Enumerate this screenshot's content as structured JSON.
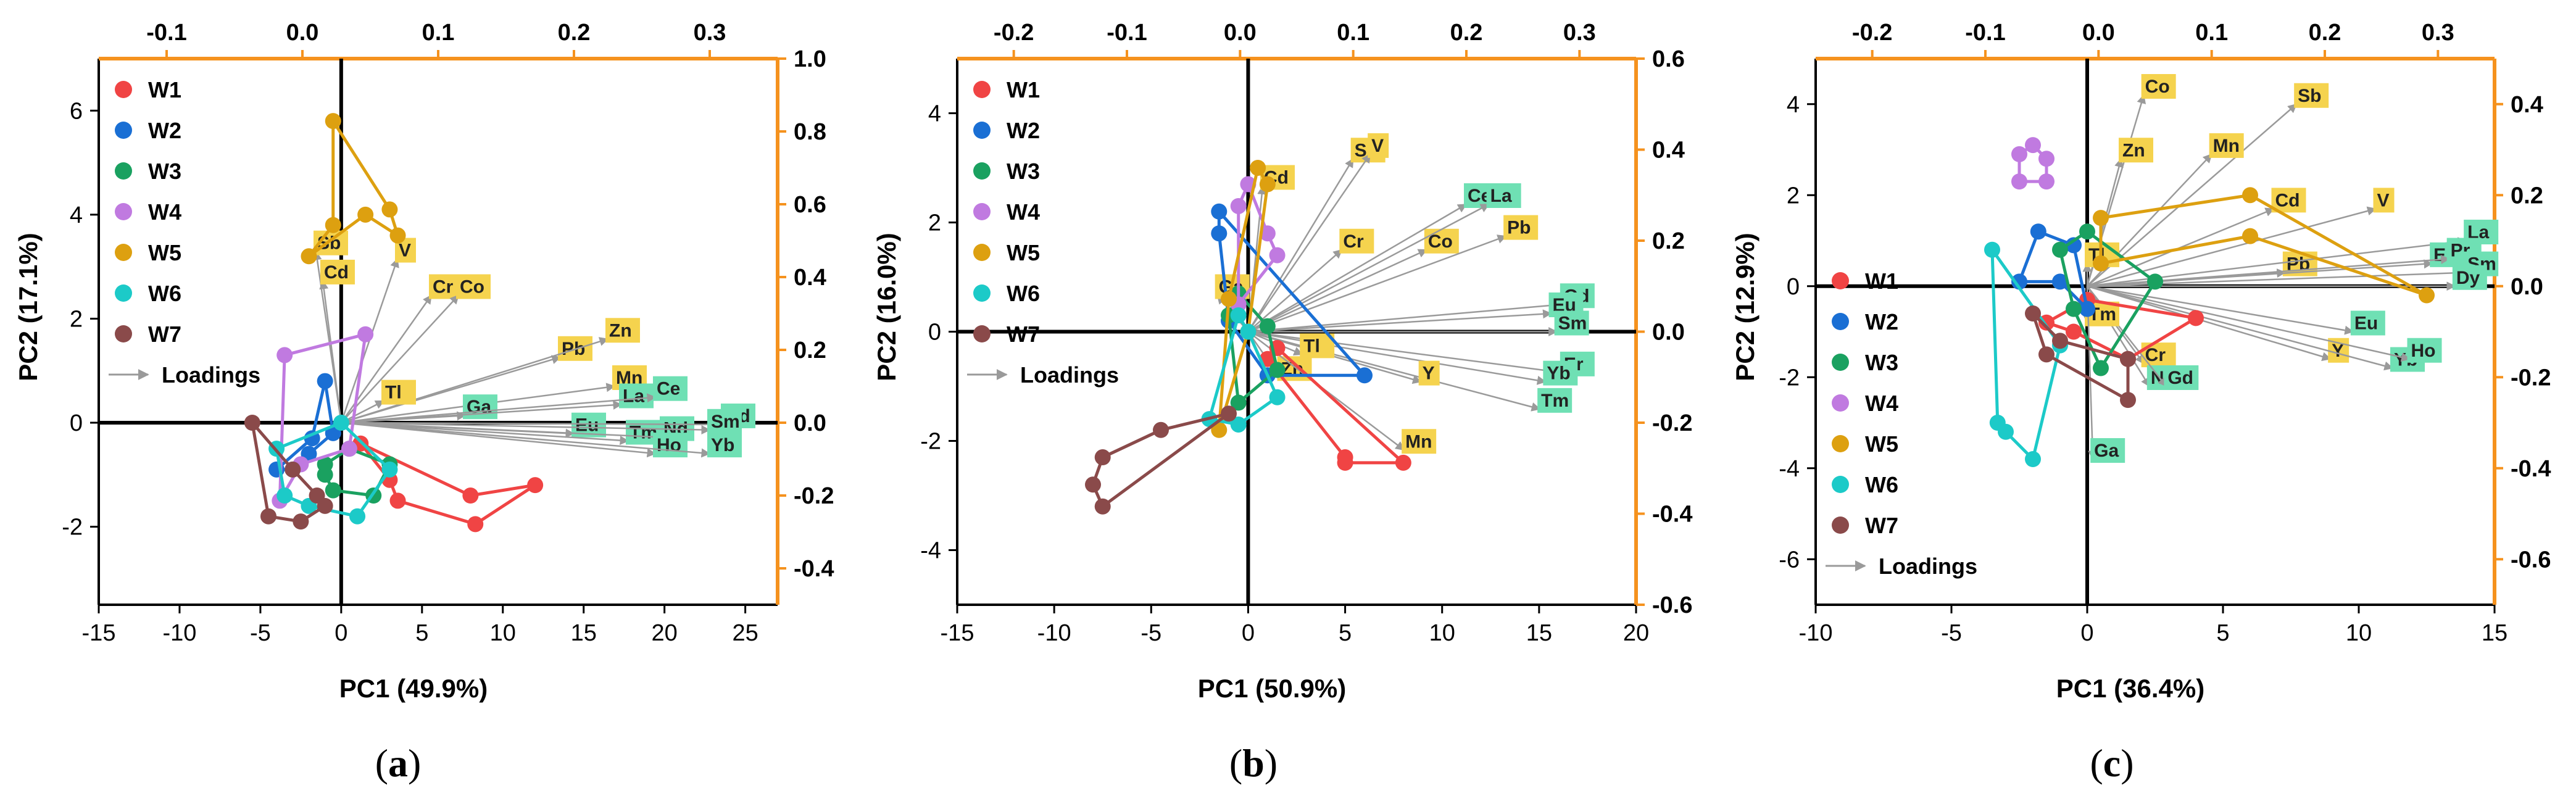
{
  "colors": {
    "W1": "#f04444",
    "W2": "#1a6fd4",
    "W3": "#1aa160",
    "W4": "#c07ae0",
    "W5": "#dda010",
    "W6": "#1ccac8",
    "W7": "#8a4a4a",
    "orange": "#f5921e",
    "loading": "#9a9a9a",
    "ylabel": "#f5d34e",
    "glabel": "#6fe0b4"
  },
  "chart_data": [
    {
      "panel": "a",
      "type": "scatter",
      "xlabel": "PC1 (49.9%)",
      "ylabel": "PC2 (17.1%)",
      "xlim": [
        -15,
        27
      ],
      "ylim": [
        -3.5,
        7
      ],
      "xticks": [
        -15,
        -10,
        -5,
        0,
        5,
        10,
        15,
        20,
        25
      ],
      "yticks": [
        -2,
        0,
        2,
        4,
        6
      ],
      "x2lim": [
        -0.15,
        0.35
      ],
      "y2lim": [
        -0.5,
        1.0
      ],
      "x2ticks": [
        -0.1,
        0.0,
        0.1,
        0.2,
        0.3
      ],
      "y2ticks": [
        -0.4,
        -0.2,
        0.0,
        0.2,
        0.4,
        0.6,
        0.8,
        1.0
      ],
      "x2ticklabels": [
        "-0.1",
        "0.0",
        "0.1",
        "0.2",
        "0.3"
      ],
      "y2ticklabels": [
        "-0.4",
        "-0.2",
        "0.0",
        "0.2",
        "0.4",
        "0.6",
        "0.8",
        "1.0"
      ],
      "legend": [
        "W1",
        "W2",
        "W3",
        "W4",
        "W5",
        "W6",
        "W7"
      ],
      "loadings_label": "Loadings",
      "legend_pos": "top-left",
      "groups": [
        {
          "name": "W1",
          "points": [
            [
              1.2,
              -0.4
            ],
            [
              8,
              -1.4
            ],
            [
              12,
              -1.2
            ],
            [
              8.3,
              -1.95
            ],
            [
              3.5,
              -1.5
            ],
            [
              3,
              -1.1
            ]
          ]
        },
        {
          "name": "W2",
          "points": [
            [
              -1,
              0.8
            ],
            [
              -0.5,
              -0.2
            ],
            [
              -2,
              -0.6
            ],
            [
              -3,
              -0.9
            ],
            [
              -4,
              -0.9
            ],
            [
              -1.8,
              -0.3
            ]
          ]
        },
        {
          "name": "W3",
          "points": [
            [
              -1,
              -0.8
            ],
            [
              0.5,
              -0.5
            ],
            [
              3,
              -0.8
            ],
            [
              2,
              -1.4
            ],
            [
              -0.5,
              -1.3
            ],
            [
              -1,
              -1
            ]
          ]
        },
        {
          "name": "W4",
          "points": [
            [
              -3.5,
              1.3
            ],
            [
              1.5,
              1.7
            ],
            [
              0.5,
              -0.5
            ],
            [
              -2.5,
              -0.8
            ],
            [
              -3.8,
              -1.5
            ]
          ]
        },
        {
          "name": "W5",
          "points": [
            [
              -0.5,
              5.8
            ],
            [
              3,
              4.1
            ],
            [
              3.5,
              3.6
            ],
            [
              1.5,
              4
            ],
            [
              -2,
              3.2
            ],
            [
              -0.5,
              3.8
            ]
          ]
        },
        {
          "name": "W6",
          "points": [
            [
              0,
              0
            ],
            [
              3,
              -0.9
            ],
            [
              1,
              -1.8
            ],
            [
              -2,
              -1.6
            ],
            [
              -3.5,
              -1.4
            ],
            [
              -4,
              -0.5
            ]
          ]
        },
        {
          "name": "W7",
          "points": [
            [
              -5.5,
              0
            ],
            [
              -3,
              -0.9
            ],
            [
              -1.5,
              -1.4
            ],
            [
              -1,
              -1.6
            ],
            [
              -2.5,
              -1.9
            ],
            [
              -4.5,
              -1.8
            ]
          ]
        }
      ],
      "loadings": [
        {
          "label": "Sb",
          "x": 0.01,
          "y": 0.47,
          "c": "y"
        },
        {
          "label": "Cd",
          "x": 0.015,
          "y": 0.39,
          "c": "y"
        },
        {
          "label": "V",
          "x": 0.07,
          "y": 0.45,
          "c": "y"
        },
        {
          "label": "Cr",
          "x": 0.095,
          "y": 0.35,
          "c": "y"
        },
        {
          "label": "Co",
          "x": 0.115,
          "y": 0.35,
          "c": "y"
        },
        {
          "label": "Pb",
          "x": 0.19,
          "y": 0.18,
          "c": "y"
        },
        {
          "label": "Zn",
          "x": 0.225,
          "y": 0.23,
          "c": "y"
        },
        {
          "label": "Mn",
          "x": 0.23,
          "y": 0.1,
          "c": "y"
        },
        {
          "label": "Tl",
          "x": 0.06,
          "y": 0.06,
          "c": "y"
        },
        {
          "label": "Ga",
          "x": 0.12,
          "y": 0.02,
          "c": "g"
        },
        {
          "label": "La",
          "x": 0.235,
          "y": 0.05,
          "c": "g"
        },
        {
          "label": "Ce",
          "x": 0.26,
          "y": 0.07,
          "c": "g"
        },
        {
          "label": "Eu",
          "x": 0.2,
          "y": -0.03,
          "c": "g"
        },
        {
          "label": "Tm",
          "x": 0.24,
          "y": -0.05,
          "c": "g"
        },
        {
          "label": "Nd",
          "x": 0.265,
          "y": -0.04,
          "c": "g"
        },
        {
          "label": "Gd",
          "x": 0.31,
          "y": -0.005,
          "c": "g"
        },
        {
          "label": "Sm",
          "x": 0.3,
          "y": -0.02,
          "c": "g"
        },
        {
          "label": "Ho",
          "x": 0.26,
          "y": -0.085,
          "c": "g"
        },
        {
          "label": "Yb",
          "x": 0.3,
          "y": -0.085,
          "c": "g"
        }
      ]
    },
    {
      "panel": "b",
      "type": "scatter",
      "xlabel": "PC1 (50.9%)",
      "ylabel": "PC2 (16.0%)",
      "xlim": [
        -15,
        20
      ],
      "ylim": [
        -5,
        5
      ],
      "xticks": [
        -15,
        -10,
        -5,
        0,
        5,
        10,
        15,
        20
      ],
      "yticks": [
        -4,
        -2,
        0,
        2,
        4
      ],
      "x2lim": [
        -0.25,
        0.35
      ],
      "y2lim": [
        -0.6,
        0.6
      ],
      "x2ticks": [
        -0.2,
        -0.1,
        0.0,
        0.1,
        0.2,
        0.3
      ],
      "y2ticks": [
        -0.6,
        -0.4,
        -0.2,
        0.0,
        0.2,
        0.4,
        0.6
      ],
      "x2ticklabels": [
        "-0.2",
        "-0.1",
        "0.0",
        "0.1",
        "0.2",
        "0.3"
      ],
      "y2ticklabels": [
        "-0.6",
        "-0.4",
        "-0.2",
        "0.0",
        "0.2",
        "0.4",
        "0.6"
      ],
      "legend": [
        "W1",
        "W2",
        "W3",
        "W4",
        "W5",
        "W6",
        "W7"
      ],
      "loadings_label": "Loadings",
      "legend_pos": "top-left",
      "groups": [
        {
          "name": "W1",
          "points": [
            [
              1.5,
              -0.3
            ],
            [
              8,
              -2.4
            ],
            [
              5,
              -2.4
            ],
            [
              5,
              -2.3
            ],
            [
              1,
              -0.5
            ]
          ]
        },
        {
          "name": "W2",
          "points": [
            [
              -1.5,
              2.2
            ],
            [
              6,
              -0.8
            ],
            [
              1,
              -0.8
            ],
            [
              -1,
              0.2
            ],
            [
              -1.5,
              1.8
            ]
          ]
        },
        {
          "name": "W3",
          "points": [
            [
              -0.5,
              0.7
            ],
            [
              1,
              0.1
            ],
            [
              1.5,
              -0.7
            ],
            [
              -0.5,
              -1.3
            ],
            [
              -1,
              0.3
            ]
          ]
        },
        {
          "name": "W4",
          "points": [
            [
              0,
              2.7
            ],
            [
              1,
              1.8
            ],
            [
              1.5,
              1.4
            ],
            [
              -0.5,
              0.5
            ],
            [
              -0.5,
              2.3
            ]
          ]
        },
        {
          "name": "W5",
          "points": [
            [
              0.5,
              3
            ],
            [
              1,
              2.7
            ],
            [
              0,
              0
            ],
            [
              -1.5,
              -1.8
            ],
            [
              -1,
              0.6
            ]
          ]
        },
        {
          "name": "W6",
          "points": [
            [
              0,
              0
            ],
            [
              1.5,
              -1.2
            ],
            [
              -0.5,
              -1.7
            ],
            [
              -2,
              -1.6
            ],
            [
              -0.5,
              0.3
            ]
          ]
        },
        {
          "name": "W7",
          "points": [
            [
              -7.5,
              -2.3
            ],
            [
              -4.5,
              -1.8
            ],
            [
              -1,
              -1.5
            ],
            [
              -7.5,
              -3.2
            ],
            [
              -8,
              -2.8
            ]
          ]
        }
      ],
      "loadings": [
        {
          "label": "Cd",
          "x": 0.02,
          "y": 0.32,
          "c": "y"
        },
        {
          "label": "Sb",
          "x": 0.1,
          "y": 0.38,
          "c": "y"
        },
        {
          "label": "V",
          "x": 0.115,
          "y": 0.39,
          "c": "y"
        },
        {
          "label": "Cr",
          "x": 0.09,
          "y": 0.18,
          "c": "y"
        },
        {
          "label": "Co",
          "x": 0.165,
          "y": 0.18,
          "c": "y"
        },
        {
          "label": "Ce",
          "x": 0.2,
          "y": 0.28,
          "c": "g"
        },
        {
          "label": "La",
          "x": 0.22,
          "y": 0.28,
          "c": "g"
        },
        {
          "label": "Pb",
          "x": 0.235,
          "y": 0.21,
          "c": "y"
        },
        {
          "label": "Gd",
          "x": 0.285,
          "y": 0.06,
          "c": "g"
        },
        {
          "label": "Eu",
          "x": 0.275,
          "y": 0.04,
          "c": "g"
        },
        {
          "label": "Sm",
          "x": 0.28,
          "y": 0.0,
          "c": "g"
        },
        {
          "label": "Er",
          "x": 0.285,
          "y": -0.09,
          "c": "g"
        },
        {
          "label": "Yb",
          "x": 0.27,
          "y": -0.11,
          "c": "g"
        },
        {
          "label": "Tm",
          "x": 0.265,
          "y": -0.17,
          "c": "g"
        },
        {
          "label": "Y",
          "x": 0.16,
          "y": -0.11,
          "c": "y"
        },
        {
          "label": "Tl",
          "x": 0.055,
          "y": -0.05,
          "c": "y"
        },
        {
          "label": "Zn",
          "x": 0.035,
          "y": -0.1,
          "c": "y"
        },
        {
          "label": "Ga",
          "x": -0.02,
          "y": 0.08,
          "c": "y"
        },
        {
          "label": "Mn",
          "x": 0.145,
          "y": -0.26,
          "c": "y"
        }
      ]
    },
    {
      "panel": "c",
      "type": "scatter",
      "xlabel": "PC1 (36.4%)",
      "ylabel": "PC2 (12.9%)",
      "xlim": [
        -10,
        15
      ],
      "ylim": [
        -7,
        5
      ],
      "xticks": [
        -10,
        -5,
        0,
        5,
        10,
        15
      ],
      "yticks": [
        -6,
        -4,
        -2,
        0,
        2,
        4
      ],
      "x2lim": [
        -0.25,
        0.35
      ],
      "y2lim": [
        -0.7,
        0.5
      ],
      "x2ticks": [
        -0.2,
        -0.1,
        0.0,
        0.1,
        0.2,
        0.3
      ],
      "y2ticks": [
        -0.6,
        -0.4,
        -0.2,
        0.0,
        0.2,
        0.4
      ],
      "x2ticklabels": [
        "-0.2",
        "-0.1",
        "0.0",
        "0.1",
        "0.2",
        "0.3"
      ],
      "y2ticklabels": [
        "-0.6",
        "-0.4",
        "-0.2",
        "0.0",
        "0.2",
        "0.4"
      ],
      "legend": [
        "W1",
        "W2",
        "W3",
        "W4",
        "W5",
        "W6",
        "W7"
      ],
      "loadings_label": "Loadings",
      "legend_pos": "bottom-left",
      "groups": [
        {
          "name": "W1",
          "points": [
            [
              0,
              -0.3
            ],
            [
              4,
              -0.7
            ],
            [
              1.5,
              -1.6
            ],
            [
              -0.5,
              -1
            ],
            [
              -1.5,
              -0.8
            ]
          ]
        },
        {
          "name": "W2",
          "points": [
            [
              -1.8,
              1.2
            ],
            [
              -0.5,
              0.9
            ],
            [
              0,
              -0.5
            ],
            [
              -1,
              0.1
            ],
            [
              -2.5,
              0.1
            ]
          ]
        },
        {
          "name": "W3",
          "points": [
            [
              0,
              1.2
            ],
            [
              2.5,
              0.1
            ],
            [
              0.5,
              -1.8
            ],
            [
              -0.5,
              -0.5
            ],
            [
              -1,
              0.8
            ]
          ]
        },
        {
          "name": "W4",
          "points": [
            [
              -2,
              3.1
            ],
            [
              -1.5,
              2.8
            ],
            [
              -1.5,
              2.3
            ],
            [
              -2.5,
              2.3
            ],
            [
              -2.5,
              2.9
            ]
          ]
        },
        {
          "name": "W5",
          "points": [
            [
              0.5,
              1.5
            ],
            [
              6,
              2
            ],
            [
              12.5,
              -0.2
            ],
            [
              6,
              1.1
            ],
            [
              0.5,
              0.5
            ]
          ]
        },
        {
          "name": "W6",
          "points": [
            [
              -3.5,
              0.8
            ],
            [
              -1,
              -1.3
            ],
            [
              -2,
              -3.8
            ],
            [
              -3,
              -3.2
            ],
            [
              -3.3,
              -3
            ]
          ]
        },
        {
          "name": "W7",
          "points": [
            [
              -2,
              -0.6
            ],
            [
              -1,
              -1.2
            ],
            [
              1.5,
              -1.6
            ],
            [
              1.5,
              -2.5
            ],
            [
              -1.5,
              -1.5
            ]
          ]
        }
      ],
      "loadings": [
        {
          "label": "Co",
          "x": 0.04,
          "y": 0.42,
          "c": "y"
        },
        {
          "label": "Sb",
          "x": 0.175,
          "y": 0.4,
          "c": "y"
        },
        {
          "label": "Zn",
          "x": 0.02,
          "y": 0.28,
          "c": "y"
        },
        {
          "label": "Mn",
          "x": 0.1,
          "y": 0.29,
          "c": "y"
        },
        {
          "label": "Cd",
          "x": 0.155,
          "y": 0.17,
          "c": "y"
        },
        {
          "label": "V",
          "x": 0.245,
          "y": 0.17,
          "c": "y"
        },
        {
          "label": "Pb",
          "x": 0.165,
          "y": 0.03,
          "c": "y"
        },
        {
          "label": "La",
          "x": 0.325,
          "y": 0.1,
          "c": "g"
        },
        {
          "label": "Er",
          "x": 0.295,
          "y": 0.05,
          "c": "g"
        },
        {
          "label": "Pr",
          "x": 0.31,
          "y": 0.06,
          "c": "g"
        },
        {
          "label": "Sm",
          "x": 0.325,
          "y": 0.03,
          "c": "g"
        },
        {
          "label": "Dy",
          "x": 0.315,
          "y": 0.0,
          "c": "g"
        },
        {
          "label": "Eu",
          "x": 0.225,
          "y": -0.1,
          "c": "g"
        },
        {
          "label": "Y",
          "x": 0.205,
          "y": -0.16,
          "c": "y"
        },
        {
          "label": "Yb",
          "x": 0.26,
          "y": -0.18,
          "c": "g"
        },
        {
          "label": "Ho",
          "x": 0.275,
          "y": -0.16,
          "c": "g"
        },
        {
          "label": "Cr",
          "x": 0.04,
          "y": -0.17,
          "c": "y"
        },
        {
          "label": "Nd",
          "x": 0.045,
          "y": -0.22,
          "c": "g"
        },
        {
          "label": "Gd",
          "x": 0.06,
          "y": -0.22,
          "c": "g"
        },
        {
          "label": "Tl",
          "x": -0.01,
          "y": 0.05,
          "c": "y"
        },
        {
          "label": "Tm",
          "x": -0.01,
          "y": -0.08,
          "c": "y"
        },
        {
          "label": "Ga",
          "x": -0.005,
          "y": -0.38,
          "c": "g"
        }
      ]
    }
  ],
  "captions": {
    "a": "a",
    "b": "b",
    "c": "c"
  }
}
